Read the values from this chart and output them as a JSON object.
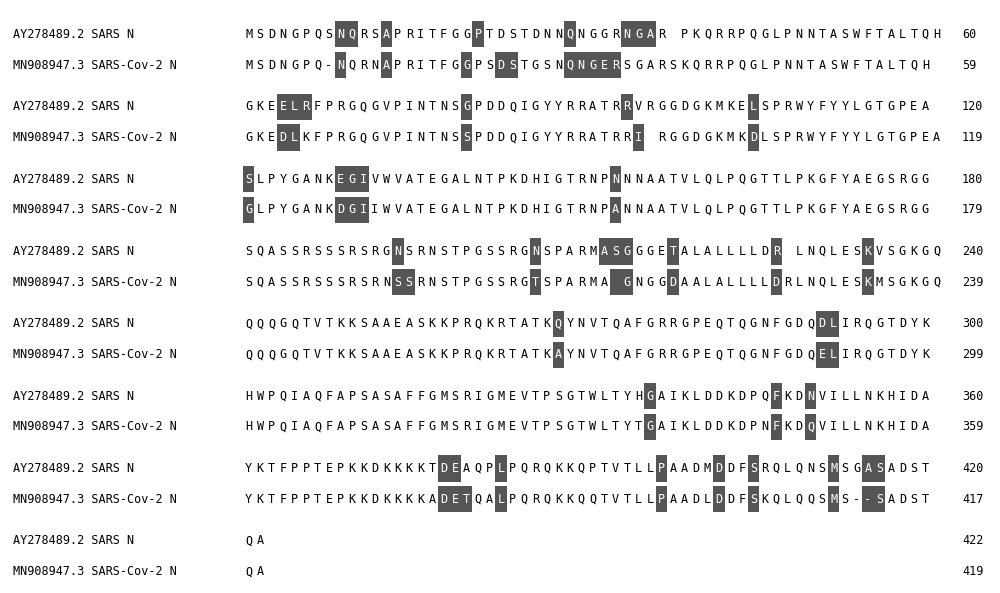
{
  "background_color": "#ffffff",
  "figure_width": 10.0,
  "figure_height": 5.93,
  "label1": "AY278489.2 SARS N",
  "label2": "MN908947.3 SARS-Cov-2 N",
  "highlight_color": "#555555",
  "text_color": "#000000",
  "hl_text_color": "#ffffff",
  "fontsize": 8.5,
  "blocks": [
    {
      "seq1": "MSDNGPQSNQRSAPRITFGGPTDSTDNNQNGGRNGAR PKQRRPQGLPNNTASWFTALTQH",
      "seq2": "MSDNGPQ-NQRNAPRITFGGPSDSTGSNQNGERSGARSKQRRPQGLPNNTASWFTALTQH",
      "num1": "60",
      "num2": "59",
      "hl1": [
        8,
        9,
        12,
        20,
        28,
        33,
        34,
        35
      ],
      "hl2": [
        8,
        12,
        19,
        22,
        23,
        28,
        29,
        30,
        31,
        32
      ]
    },
    {
      "seq1": "GKEELRFPRGQGVPINTNSGPDDQIGYYRRATRRVRGGDGKMKELSPRWYFYYLGTGPEA",
      "seq2": "GKEDLKFPRGQGVPINTNSSPDDQIGYYRRATRRI RGGDGKMKDLSPRWYFYYLGTGPEA",
      "num1": "120",
      "num2": "119",
      "hl1": [
        3,
        4,
        5,
        19,
        33,
        44
      ],
      "hl2": [
        3,
        4,
        19,
        34,
        44
      ]
    },
    {
      "seq1": "SLPYGANKEGIVWVATEGALNTPKDHIGTRNPNNNAATVLQLPQGTTLPKGFYAEGSRGG",
      "seq2": "GLPYGANKDGIIWVATEGALNTPKDHIGTRNPANNAATVLQLPQGTTLPKGFYAEGSRGG",
      "num1": "180",
      "num2": "179",
      "hl1": [
        0,
        8,
        9,
        10,
        32
      ],
      "hl2": [
        0,
        8,
        9,
        10,
        32
      ]
    },
    {
      "seq1": "SQASSRSSSRSRGNSRNSTPGSSRGNSPARMASGGGETALALLLLDR LNQLESKVSGKGQ",
      "seq2": "SQASSRSSSRSRNSSRNSTPGSSRGTSPARMA GNGGDAALALLLLDRLNQLESKMSGKGQ",
      "num1": "240",
      "num2": "239",
      "hl1": [
        13,
        25,
        31,
        32,
        33,
        37,
        46,
        54
      ],
      "hl2": [
        13,
        14,
        25,
        32,
        33,
        37,
        46,
        54
      ]
    },
    {
      "seq1": "QQQGQTVTKKSAAEASKKPRQKRTATKQYNVTQAFGRRGPEQTQGNFGDQDLIRQGTDYK",
      "seq2": "QQQGQTVTKKSAAEASKKPRQKRTATKAYNVTQAFGRRGPEQTQGNFGDQELIRQGTDYK",
      "num1": "300",
      "num2": "299",
      "hl1": [
        27,
        50,
        51
      ],
      "hl2": [
        27,
        50,
        51
      ]
    },
    {
      "seq1": "HWPQIAQFAPSASAFFGMSRIGMEVTPSGTWLTYHGAIKLDDKDPQFKDNVILLNKHIDA",
      "seq2": "HWPQIAQFAPSASAFFGMSRIGMEVTPSGTWLTYTGAIKLDDKDPNFKDQVILLNKHIDA",
      "num1": "360",
      "num2": "359",
      "hl1": [
        35,
        46,
        49
      ],
      "hl2": [
        35,
        46,
        49
      ]
    },
    {
      "seq1": "YKTFPPTEPKKDKKKKTDEAQPLPQRQKKQPTVTLLPAADMDDFSRQLQNSMSGASADST",
      "seq2": "YKTFPPTEPKKDKKKKADETQALPQRQKKQQTVTLLPAADLDDFSKQLQQSMS--SADST",
      "num1": "420",
      "num2": "417",
      "hl1": [
        17,
        18,
        22,
        36,
        41,
        44,
        51,
        54,
        55
      ],
      "hl2": [
        17,
        18,
        19,
        22,
        36,
        41,
        44,
        51,
        54,
        55
      ]
    },
    {
      "seq1": "QA",
      "seq2": "QA",
      "num1": "422",
      "num2": "419",
      "hl1": [],
      "hl2": []
    }
  ]
}
